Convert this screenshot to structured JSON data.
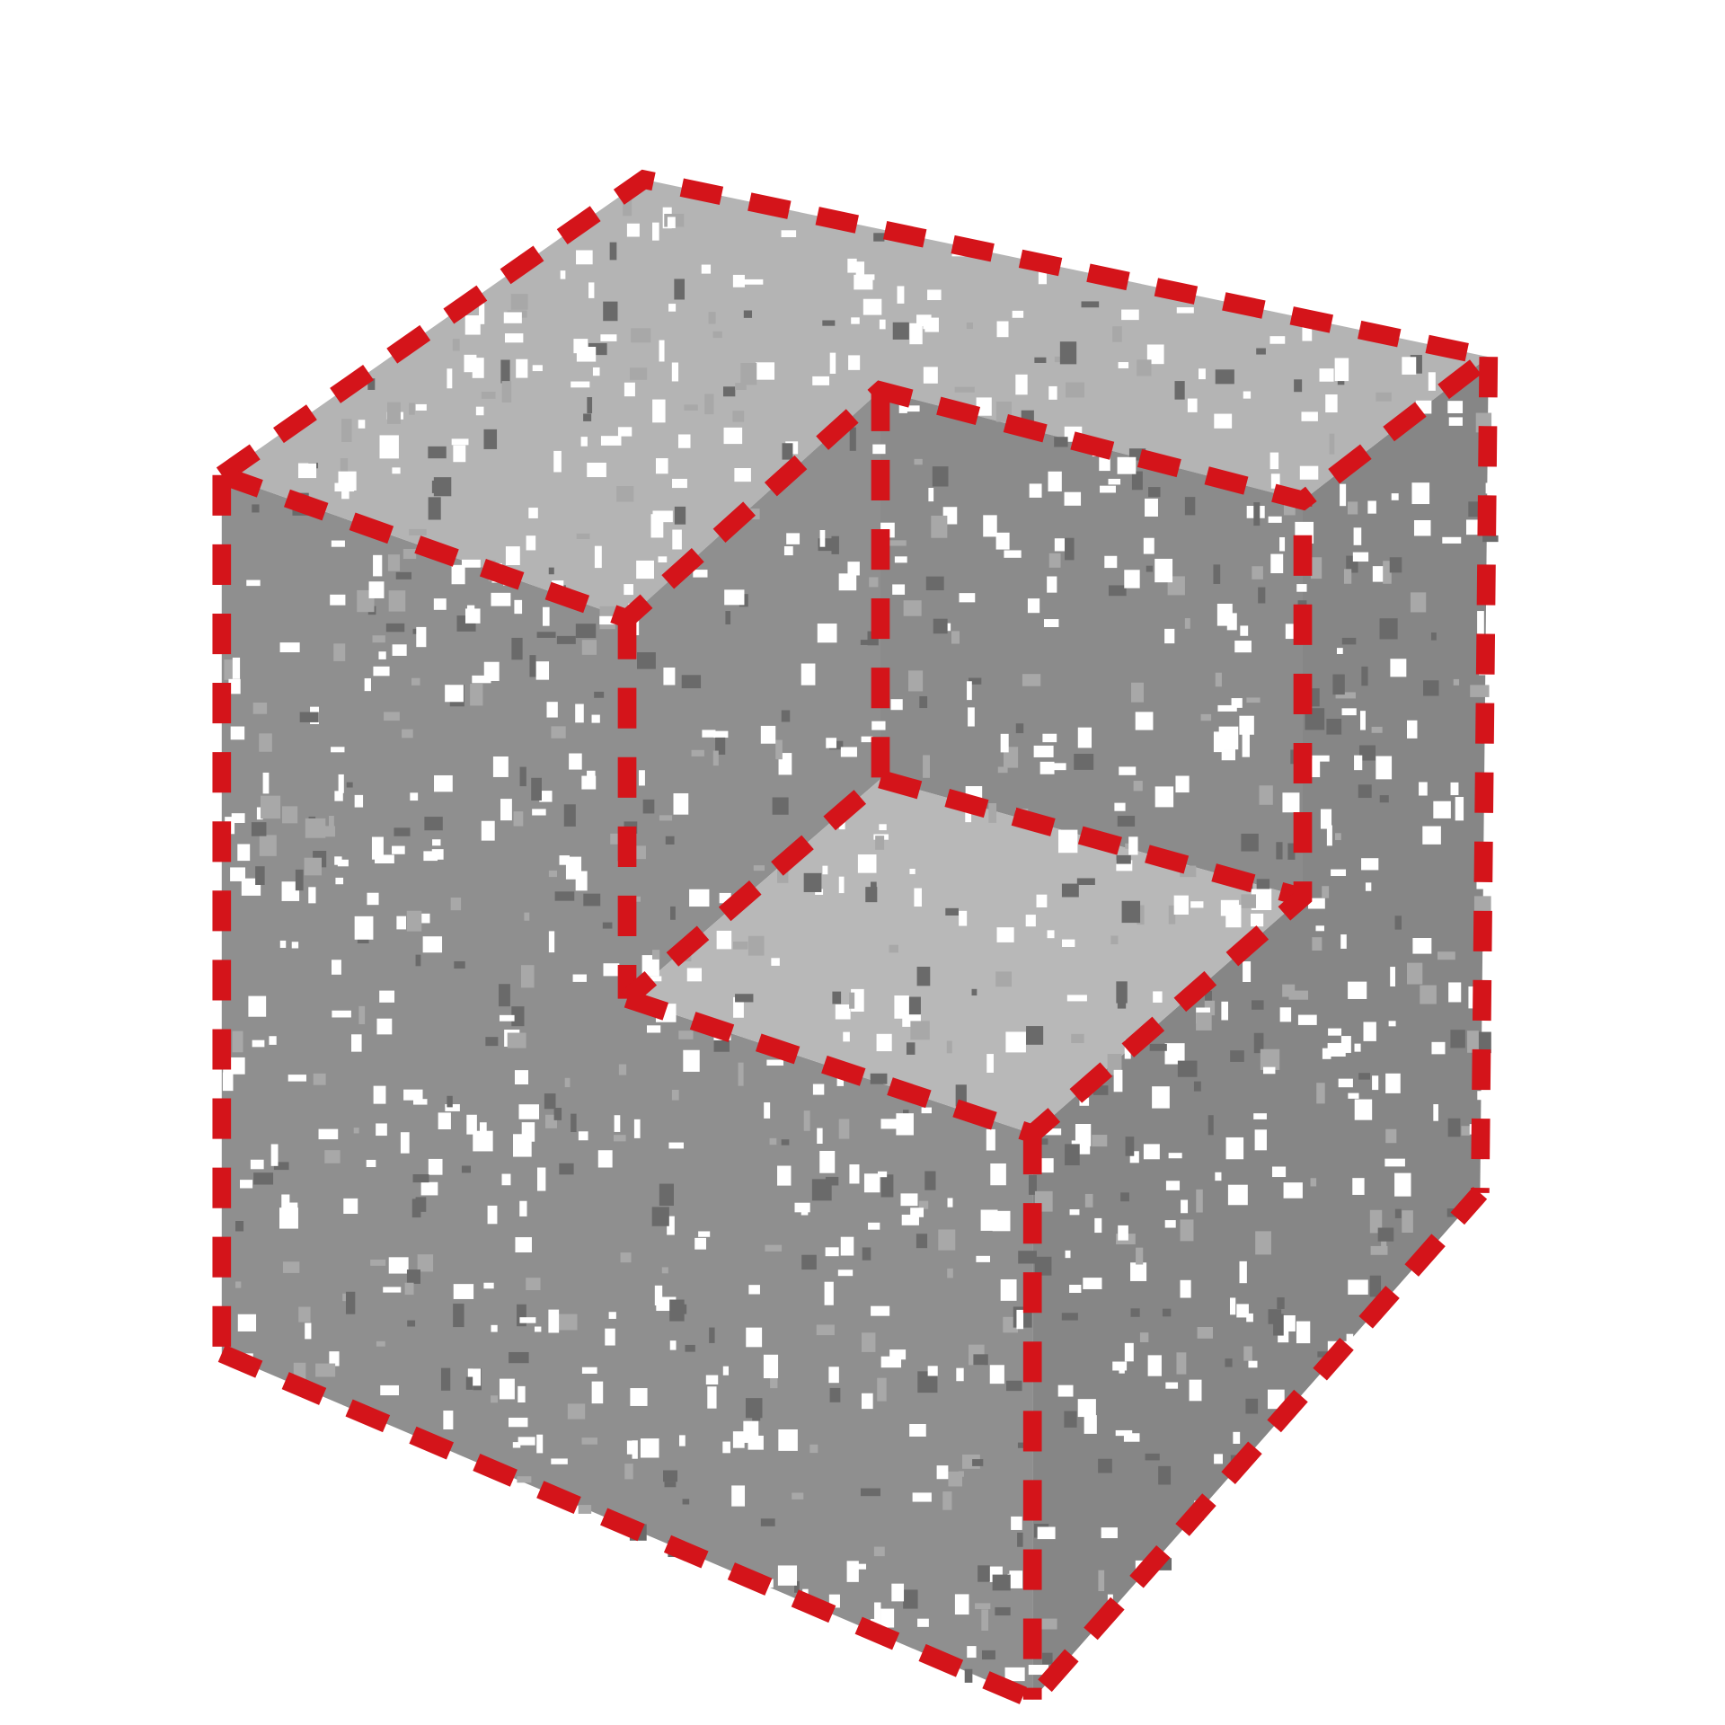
{
  "scene": {
    "subject": "cube-with-corner-notch",
    "colors": {
      "background": "#ffffff",
      "top_face": "#b4b4b4",
      "left_face": "#8f8f8f",
      "right_face": "#868686",
      "notch_floor": "#b8b8b8",
      "notch_wall_back": "#8b8b8b",
      "notch_wall_side": "#8f8f8f",
      "edge_highlight": "#d4141a",
      "speckle_light": "#ffffff",
      "speckle_dark": "#6a6a6a"
    }
  }
}
